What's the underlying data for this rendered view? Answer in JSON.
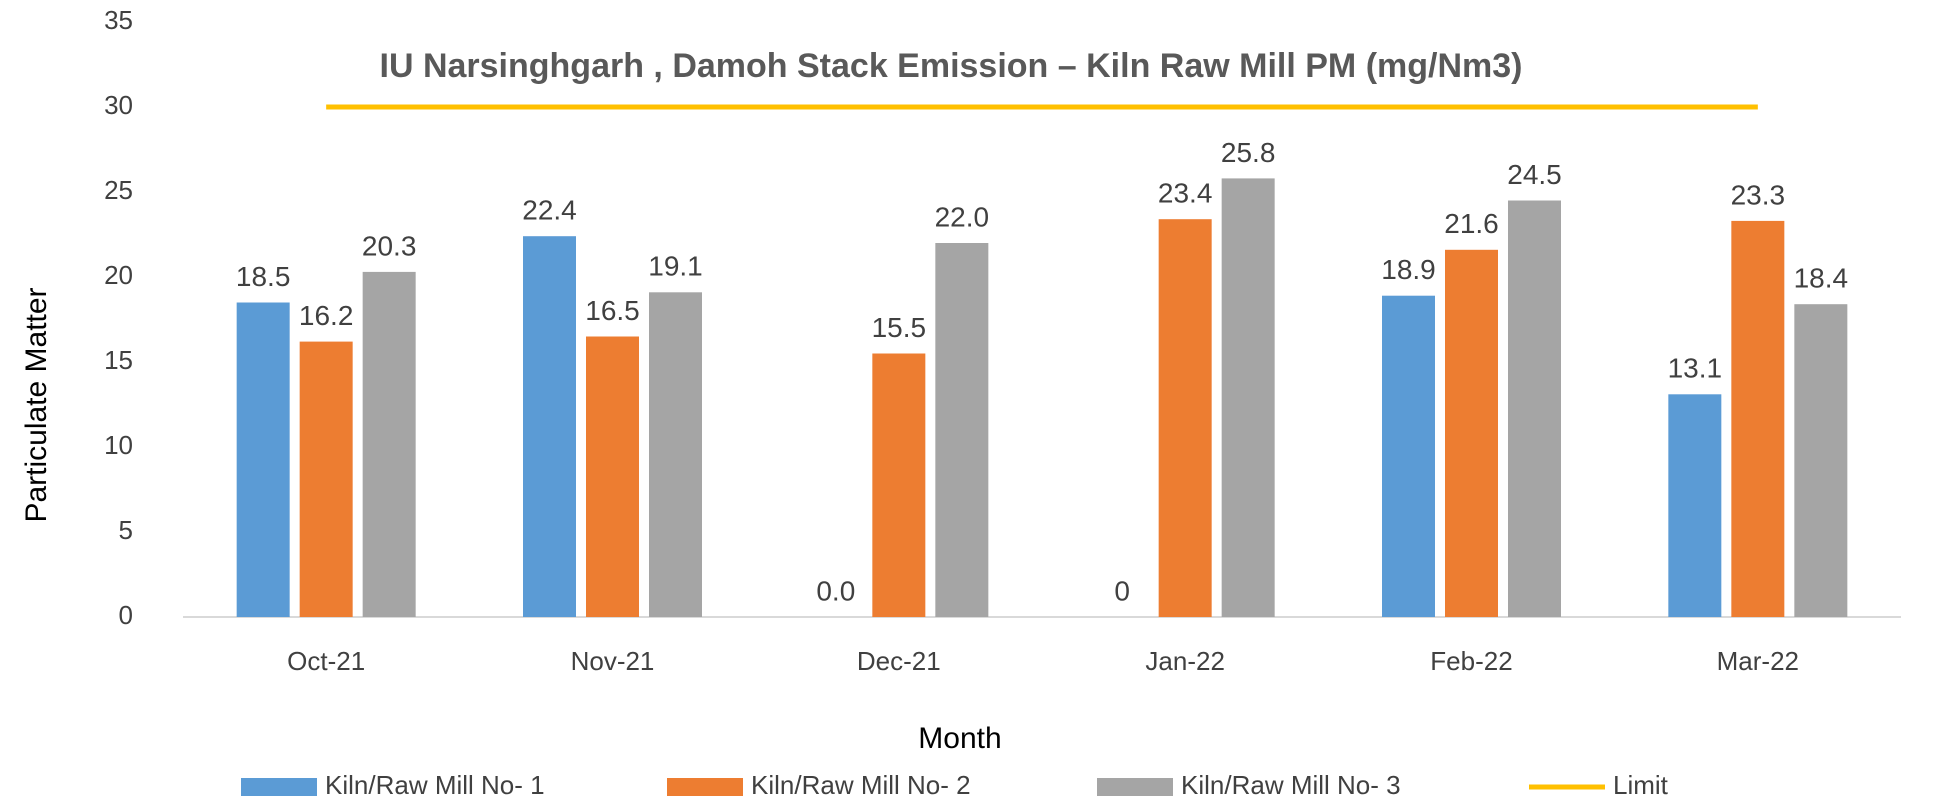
{
  "chart_data": {
    "type": "bar",
    "title": "IU Narsinghgarh , Damoh Stack Emission – Kiln Raw Mill PM (mg/Nm3)",
    "x_label": "Month",
    "y_label": "Particulate Matter",
    "categories": [
      "Oct-21",
      "Nov-21",
      "Dec-21",
      "Jan-22",
      "Feb-22",
      "Mar-22"
    ],
    "series": [
      {
        "name": "Kiln/Raw Mill No- 1",
        "color": "#5b9bd5",
        "values": [
          18.5,
          22.4,
          0.0,
          0,
          18.9,
          13.1
        ],
        "value_labels": [
          "18.5",
          "22.4",
          "0.0",
          "0",
          "18.9",
          "13.1"
        ]
      },
      {
        "name": "Kiln/Raw Mill No- 2",
        "color": "#ed7d31",
        "values": [
          16.2,
          16.5,
          15.5,
          23.4,
          21.6,
          23.3
        ],
        "value_labels": [
          "16.2",
          "16.5",
          "15.5",
          "23.4",
          "21.6",
          "23.3"
        ]
      },
      {
        "name": "Kiln/Raw Mill No- 3",
        "color": "#a5a5a5",
        "values": [
          20.3,
          19.1,
          22.0,
          25.8,
          24.5,
          18.4
        ],
        "value_labels": [
          "20.3",
          "19.1",
          "22.0",
          "25.8",
          "24.5",
          "18.4"
        ]
      },
      {
        "name": "Limit",
        "type": "line",
        "color": "#ffc000",
        "values": [
          30,
          30,
          30,
          30,
          30,
          30
        ]
      }
    ],
    "ylim": [
      0,
      35
    ],
    "yticks": [
      0,
      5,
      10,
      15,
      20,
      25,
      30,
      35
    ],
    "grid": false,
    "legend": "bottom"
  }
}
